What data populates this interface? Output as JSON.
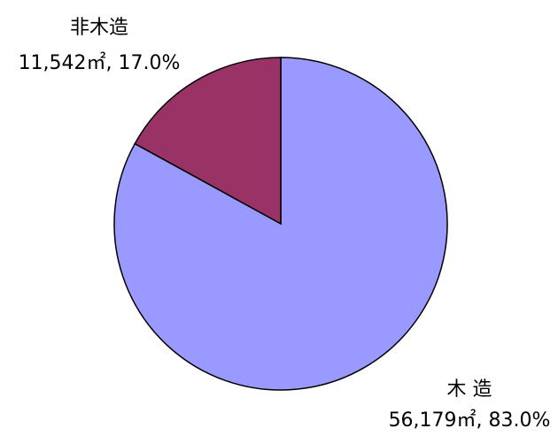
{
  "chart_data": {
    "type": "pie",
    "categories": [
      "木 造",
      "非木造"
    ],
    "values": [
      83.0,
      17.0
    ],
    "value_labels": [
      "83.0%",
      "17.0%"
    ],
    "areas": [
      56179,
      11542
    ],
    "area_labels": [
      "56,179㎡",
      "11,542㎡"
    ],
    "label_separator": ", ",
    "colors": [
      "#9999ff",
      "#993366"
    ]
  }
}
